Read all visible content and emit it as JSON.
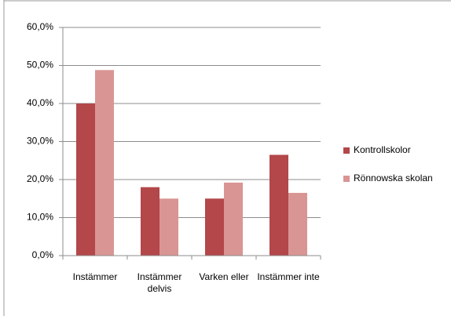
{
  "chart_data": {
    "type": "bar",
    "categories": [
      "Instämmer",
      "Instämmer delvis",
      "Varken eller",
      "Instämmer inte"
    ],
    "series": [
      {
        "name": "Kontrollskolor",
        "color": "#b3474a",
        "values": [
          40.0,
          18.0,
          15.0,
          26.5
        ]
      },
      {
        "name": "Rönnowska skolan",
        "color": "#d99594",
        "values": [
          48.8,
          15.0,
          19.2,
          16.5
        ]
      }
    ],
    "ylim": [
      0,
      60
    ],
    "yticks": [
      {
        "value": 0,
        "label": "0,0%"
      },
      {
        "value": 10,
        "label": "10,0%"
      },
      {
        "value": 20,
        "label": "20,0%"
      },
      {
        "value": 30,
        "label": "30,0%"
      },
      {
        "value": 40,
        "label": "40,0%"
      },
      {
        "value": 50,
        "label": "50,0%"
      },
      {
        "value": 60,
        "label": "60,0%"
      }
    ],
    "grid": true,
    "legend": "right"
  }
}
